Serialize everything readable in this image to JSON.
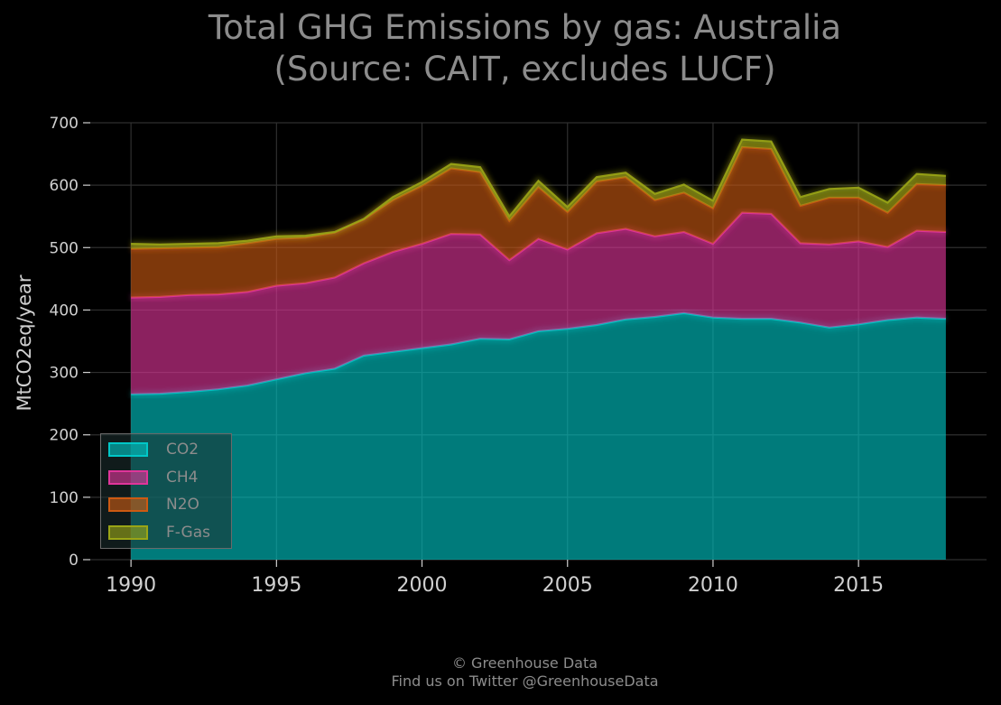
{
  "title_lines": [
    "Total GHG Emissions by gas: Australia",
    "(Source: CAIT, excludes LUCF)"
  ],
  "credit_lines": [
    "© Greenhouse Data",
    "Find us on Twitter @GreenhouseData"
  ],
  "colors": {
    "background": "#000000",
    "CO2": "#00c7c7",
    "CH4": "#e0359a",
    "N2O": "#cc5a12",
    "F-Gas": "#9aa516",
    "text": "#8c8c8c",
    "grid": "#2f2f2f"
  },
  "chart_data": {
    "type": "area",
    "stacked": true,
    "title": "Total GHG Emissions by gas: Australia (Source: CAIT, excludes LUCF)",
    "xlabel": "",
    "ylabel": "MtCO2eq/year",
    "xlim": [
      1988.6,
      2019.4
    ],
    "ylim": [
      0,
      700
    ],
    "xticks": [
      1990,
      1995,
      2000,
      2005,
      2010,
      2015
    ],
    "yticks": [
      0,
      100,
      200,
      300,
      400,
      500,
      600,
      700
    ],
    "grid": true,
    "legend_position": "bottom-left",
    "x": [
      1990,
      1991,
      1992,
      1993,
      1994,
      1995,
      1996,
      1997,
      1998,
      1999,
      2000,
      2001,
      2002,
      2003,
      2004,
      2005,
      2006,
      2007,
      2008,
      2009,
      2010,
      2011,
      2012,
      2013,
      2014,
      2015,
      2016,
      2017,
      2018
    ],
    "series": [
      {
        "name": "CO2",
        "values": [
          265,
          266,
          269,
          273,
          279,
          289,
          299,
          306,
          327,
          333,
          339,
          345,
          354,
          353,
          366,
          370,
          376,
          385,
          389,
          395,
          388,
          386,
          386,
          380,
          372,
          377,
          384,
          388,
          386
        ]
      },
      {
        "name": "CH4",
        "values": [
          155,
          155,
          155,
          152,
          150,
          150,
          144,
          146,
          148,
          160,
          167,
          177,
          167,
          127,
          148,
          127,
          147,
          145,
          129,
          130,
          118,
          170,
          168,
          127,
          133,
          133,
          117,
          139,
          139
        ]
      },
      {
        "name": "N2O",
        "values": [
          78,
          78,
          76,
          76,
          78,
          75,
          73,
          72,
          70,
          83,
          93,
          105,
          100,
          63,
          83,
          60,
          83,
          83,
          58,
          63,
          57,
          105,
          104,
          60,
          75,
          70,
          55,
          75,
          75
        ]
      },
      {
        "name": "F-Gas",
        "values": [
          8,
          6,
          6,
          6,
          4,
          4,
          3,
          1,
          1,
          5,
          6,
          7,
          8,
          7,
          10,
          8,
          7,
          7,
          10,
          13,
          12,
          12,
          12,
          14,
          14,
          16,
          16,
          16,
          15
        ]
      }
    ]
  }
}
